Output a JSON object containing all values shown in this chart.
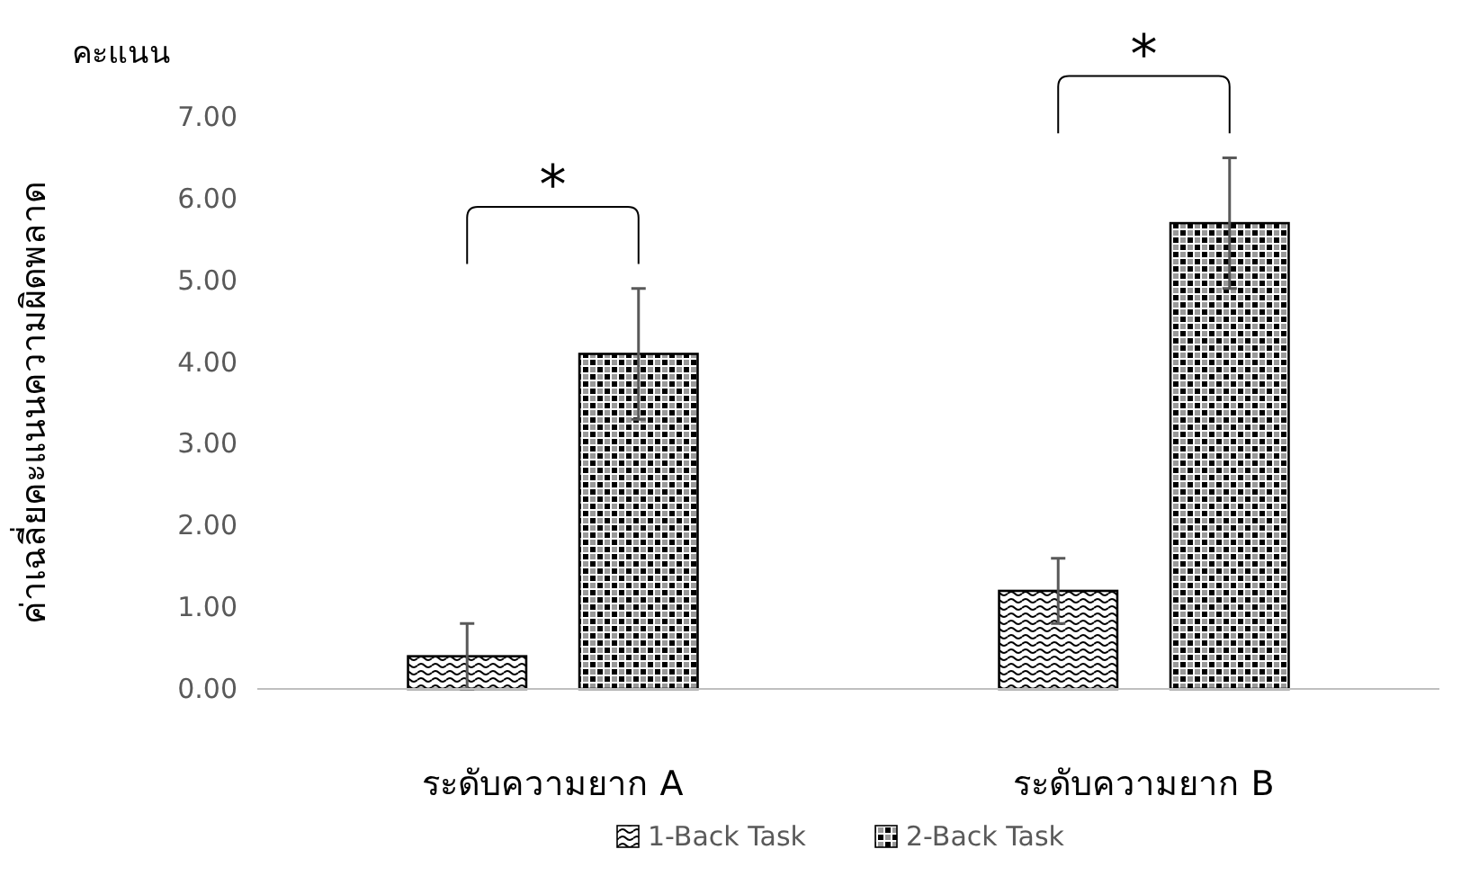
{
  "chart_data": {
    "type": "bar",
    "ylabel": "ค่าเฉลี่ยคะแนนความผิดพลาด",
    "annotations": [
      "คะแนน",
      "*",
      "*"
    ],
    "categories": [
      "ระดับความยาก A",
      "ระดับความยาก B"
    ],
    "series": [
      {
        "name": "1-Back Task",
        "color": "#000000",
        "values": [
          0.4,
          1.2
        ],
        "errors": [
          0.4,
          0.4
        ]
      },
      {
        "name": "2-Back Task",
        "color": "#000000",
        "values": [
          4.1,
          5.7
        ],
        "errors": [
          0.8,
          0.8
        ]
      }
    ],
    "ylim": [
      0,
      7
    ],
    "yticks": [
      {
        "value": 0,
        "label": "0.00"
      },
      {
        "value": 1,
        "label": "1.00"
      },
      {
        "value": 2,
        "label": "2.00"
      },
      {
        "value": 3,
        "label": "3.00"
      },
      {
        "value": 4,
        "label": "4.00"
      },
      {
        "value": 5,
        "label": "5.00"
      },
      {
        "value": 6,
        "label": "6.00"
      },
      {
        "value": 7,
        "label": "7.00"
      }
    ],
    "grid": false,
    "legend": "bottom"
  }
}
